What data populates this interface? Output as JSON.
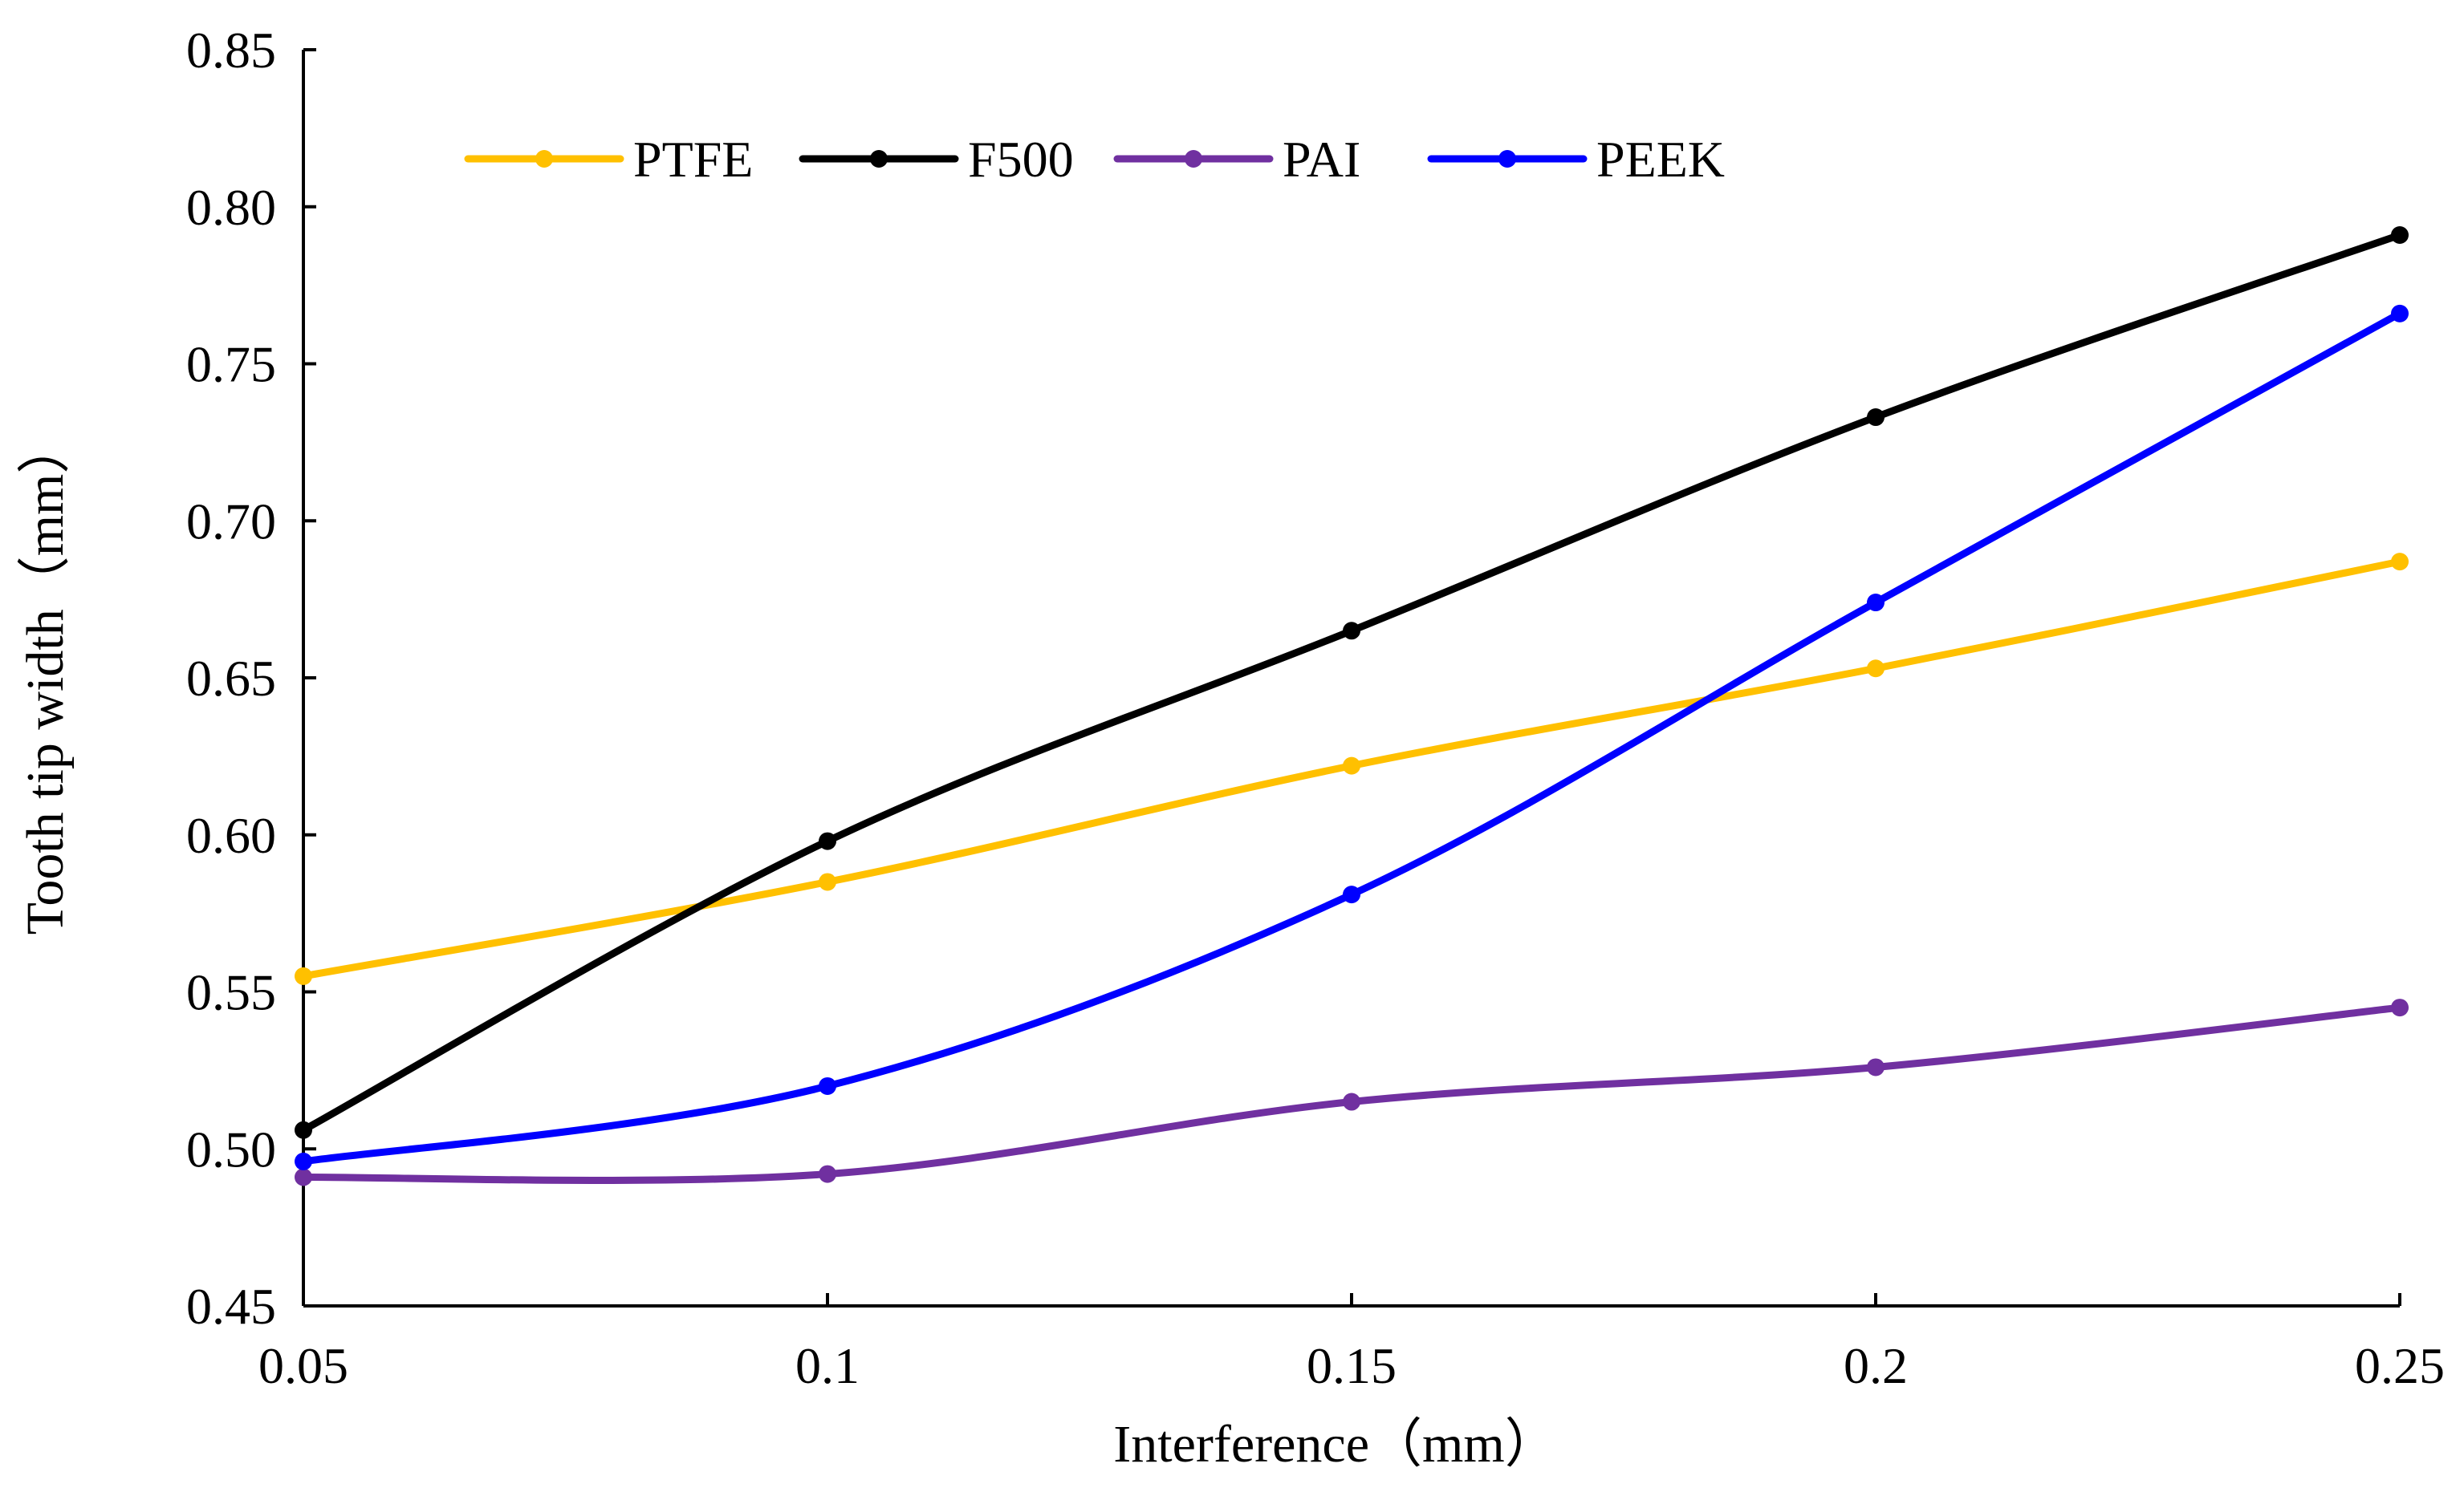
{
  "chart_data": {
    "type": "line",
    "title": "",
    "xlabel": "Interference（mm）",
    "ylabel": "Tooth tip width（mm）",
    "x": [
      0.05,
      0.1,
      0.15,
      0.2,
      0.25
    ],
    "x_tick_labels": [
      "0.05",
      "0.1",
      "0.15",
      "0.2",
      "0.25"
    ],
    "xlim": [
      0.05,
      0.25
    ],
    "ylim": [
      0.45,
      0.85
    ],
    "y_ticks": [
      0.45,
      0.5,
      0.55,
      0.6,
      0.65,
      0.7,
      0.75,
      0.8,
      0.85
    ],
    "y_tick_labels": [
      "0.45",
      "0.50",
      "0.55",
      "0.60",
      "0.65",
      "0.70",
      "0.75",
      "0.80",
      "0.85"
    ],
    "grid": false,
    "legend_position": "top-left",
    "series": [
      {
        "name": "PTFE",
        "color": "#FFC000",
        "values": [
          0.555,
          0.585,
          0.622,
          0.653,
          0.687
        ]
      },
      {
        "name": "F500",
        "color": "#000000",
        "values": [
          0.506,
          0.598,
          0.665,
          0.733,
          0.791
        ]
      },
      {
        "name": "PAI",
        "color": "#7030A0",
        "values": [
          0.491,
          0.492,
          0.515,
          0.526,
          0.545
        ]
      },
      {
        "name": "PEEK",
        "color": "#0000FF",
        "values": [
          0.496,
          0.52,
          0.581,
          0.674,
          0.766
        ]
      }
    ]
  }
}
